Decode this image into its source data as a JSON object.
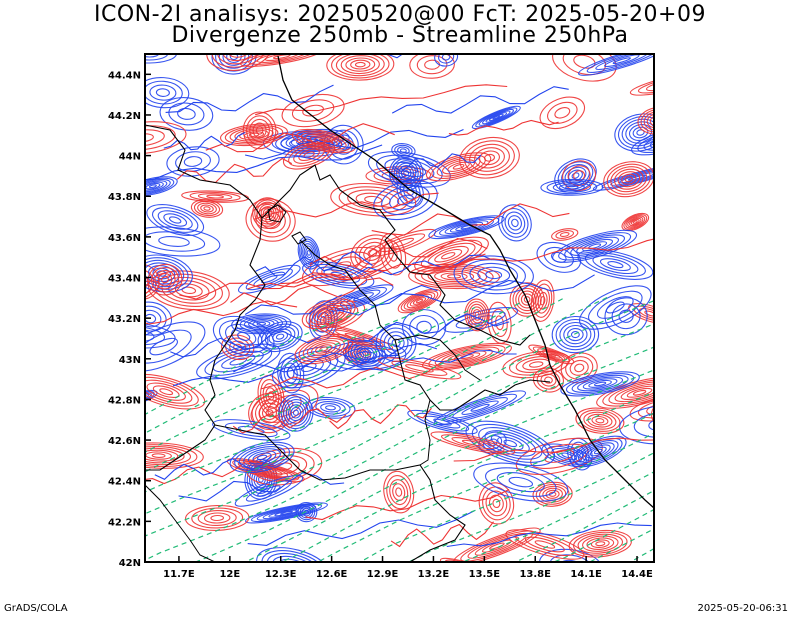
{
  "title_line1": "ICON-2I analisys: 20250520@00 FcT: 2025-05-20+09",
  "title_line2": "Divergenze 250mb - Streamline 250hPa",
  "footer_left": "GrADS/COLA",
  "footer_right": "2025-05-20-06:31",
  "colors": {
    "convergence": "#2244ee",
    "divergence": "#ee3333",
    "streamline": "#22bb77",
    "border": "#000000"
  },
  "map": {
    "lon_range": [
      11.5,
      14.5
    ],
    "lat_range": [
      42.0,
      44.5
    ],
    "lon_ticks": [
      "11.7E",
      "12E",
      "12.3E",
      "12.6E",
      "12.9E",
      "13.2E",
      "13.5E",
      "13.8E",
      "14.1E",
      "14.4E"
    ],
    "lon_tick_values": [
      11.7,
      12.0,
      12.3,
      12.6,
      12.9,
      13.2,
      13.5,
      13.8,
      14.1,
      14.4
    ],
    "lat_ticks": [
      "42N",
      "42.2N",
      "42.4N",
      "42.6N",
      "42.8N",
      "43N",
      "43.2N",
      "43.4N",
      "43.6N",
      "43.8N",
      "44N",
      "44.2N",
      "44.4N"
    ],
    "lat_tick_values": [
      42.0,
      42.2,
      42.4,
      42.6,
      42.8,
      43.0,
      43.2,
      43.4,
      43.6,
      43.8,
      44.0,
      44.2,
      44.4
    ]
  }
}
